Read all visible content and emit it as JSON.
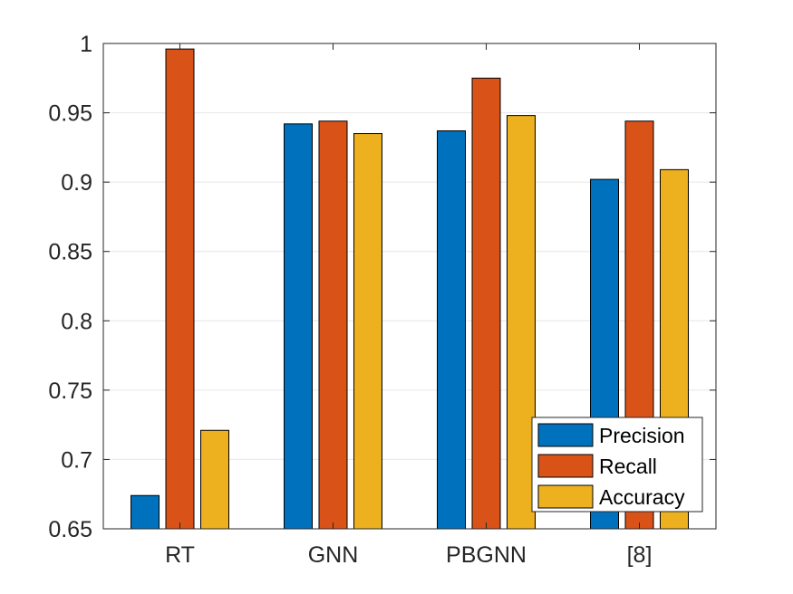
{
  "chart_data": {
    "type": "bar",
    "title": "",
    "xlabel": "",
    "ylabel": "",
    "categories": [
      "RT",
      "GNN",
      "PBGNN",
      "[8]"
    ],
    "series": [
      {
        "name": "Precision",
        "color": "#0072BD",
        "values": [
          0.674,
          0.942,
          0.937,
          0.902
        ]
      },
      {
        "name": "Recall",
        "color": "#D95319",
        "values": [
          0.996,
          0.944,
          0.975,
          0.944
        ]
      },
      {
        "name": "Accuracy",
        "color": "#EDB120",
        "values": [
          0.721,
          0.935,
          0.948,
          0.909
        ]
      }
    ],
    "ylim": [
      0.65,
      1.0
    ],
    "yticks": [
      0.65,
      0.7,
      0.75,
      0.8,
      0.85,
      0.9,
      0.95,
      1.0
    ],
    "ytick_labels": [
      "0.65",
      "0.7",
      "0.75",
      "0.8",
      "0.85",
      "0.9",
      "0.95",
      "1"
    ],
    "grid": "horizontal",
    "legend_position": "bottom-right"
  }
}
